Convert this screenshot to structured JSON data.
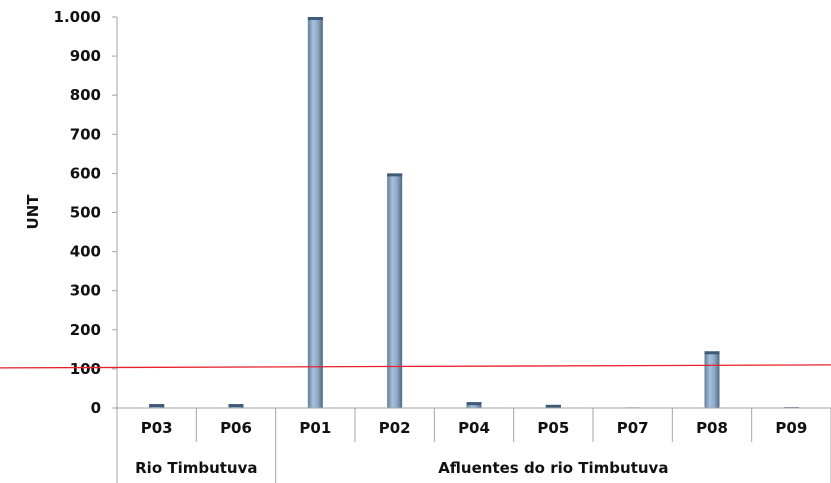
{
  "chart_data": {
    "type": "bar",
    "title": "",
    "ylabel": "UNT",
    "ylim": [
      0,
      1000
    ],
    "yticks": [
      0,
      100,
      200,
      300,
      400,
      500,
      600,
      700,
      800,
      900,
      1000
    ],
    "ytick_labels": [
      "0",
      "100",
      "200",
      "300",
      "400",
      "500",
      "600",
      "700",
      "800",
      "900",
      "1.000"
    ],
    "categories": [
      "P03",
      "P06",
      "P01",
      "P02",
      "P04",
      "P05",
      "P07",
      "P08",
      "P09"
    ],
    "values": [
      10,
      10,
      1000,
      600,
      15,
      8,
      0,
      145,
      2
    ],
    "groups": [
      {
        "label": "Rio Timbutuva",
        "categories": [
          "P03",
          "P06"
        ]
      },
      {
        "label": "Afluentes do rio Timbutuva",
        "categories": [
          "P01",
          "P02",
          "P04",
          "P05",
          "P07",
          "P08",
          "P09"
        ]
      }
    ],
    "reference_line": {
      "value": 100,
      "color": "#e8202a"
    },
    "bar_color": "#7f9bbb",
    "grid": false,
    "legend": "none"
  }
}
